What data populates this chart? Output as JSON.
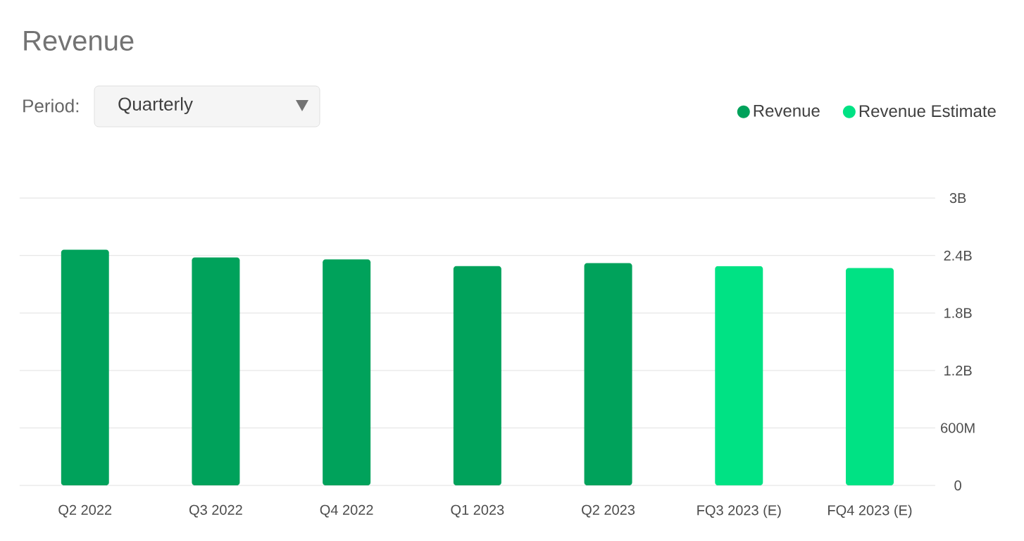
{
  "chart_data": {
    "type": "bar",
    "title": "Revenue",
    "annotations": [
      "Period:",
      "Quarterly"
    ],
    "categories": [
      "Q2 2022",
      "Q3 2022",
      "Q4 2022",
      "Q1 2023",
      "Q2 2023",
      "FQ3 2023 (E)",
      "FQ4 2023 (E)"
    ],
    "series": [
      {
        "name": "Revenue",
        "color": "#00a25b",
        "values": [
          2460000000,
          2380000000,
          2360000000,
          2290000000,
          2320000000,
          null,
          null
        ]
      },
      {
        "name": "Revenue Estimate",
        "color": "#00e284",
        "values": [
          null,
          null,
          null,
          null,
          null,
          2290000000,
          2270000000
        ]
      }
    ],
    "ylim": [
      0,
      3000000000
    ],
    "yticks": [
      {
        "value": 0,
        "label": "0"
      },
      {
        "value": 600000000,
        "label": "600M"
      },
      {
        "value": 1200000000,
        "label": "1.2B"
      },
      {
        "value": 1800000000,
        "label": "1.8B"
      },
      {
        "value": 2400000000,
        "label": "2.4B"
      },
      {
        "value": 3000000000,
        "label": "3B"
      }
    ],
    "grid": "y",
    "legend": "top right",
    "marker": "circle"
  }
}
